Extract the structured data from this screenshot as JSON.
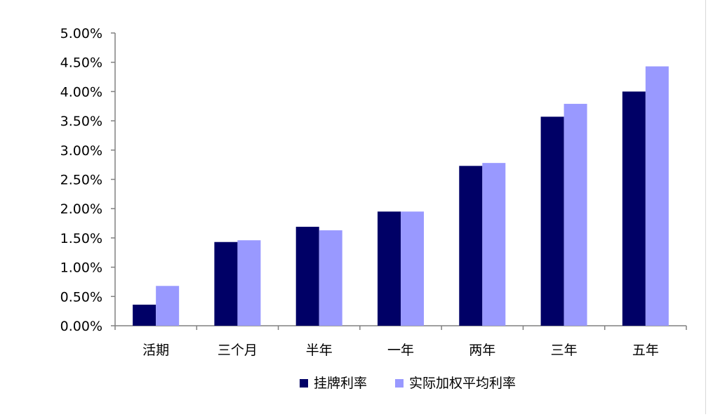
{
  "chart_data": {
    "type": "bar",
    "categories": [
      "活期",
      "三个月",
      "半年",
      "一年",
      "两年",
      "三年",
      "五年"
    ],
    "series": [
      {
        "name": "挂牌利率",
        "color": "#000066",
        "values": [
          0.36,
          1.43,
          1.69,
          1.95,
          2.73,
          3.57,
          4.0
        ]
      },
      {
        "name": "实际加权平均利率",
        "color": "#9999ff",
        "values": [
          0.68,
          1.46,
          1.63,
          1.95,
          2.78,
          3.79,
          4.43
        ]
      }
    ],
    "y_ticks": [
      "0.00%",
      "0.50%",
      "1.00%",
      "1.50%",
      "2.00%",
      "2.50%",
      "3.00%",
      "3.50%",
      "4.00%",
      "4.50%",
      "5.00%"
    ],
    "ylim": [
      0,
      5
    ],
    "grid": false,
    "legend_position": "bottom"
  }
}
